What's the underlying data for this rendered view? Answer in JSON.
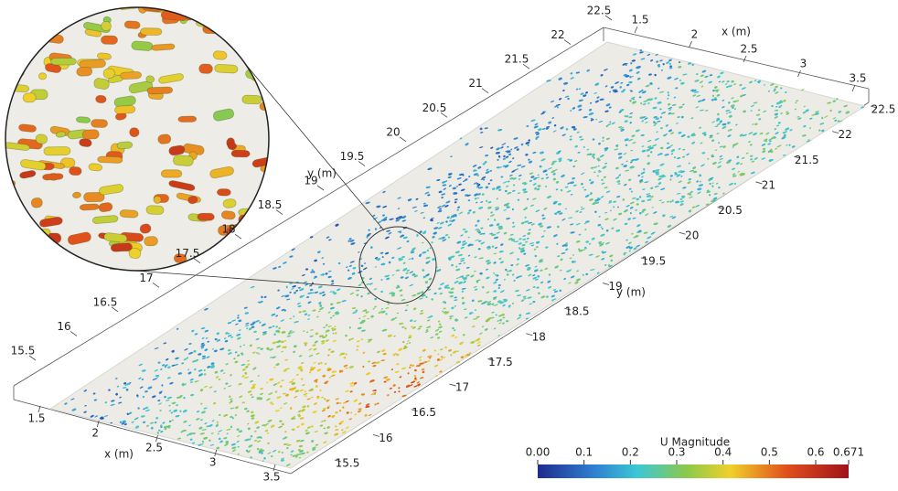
{
  "colorbar": {
    "title": "U Magnitude",
    "ticks": [
      {
        "value": 0,
        "label": "0.00"
      },
      0.1,
      0.2,
      0.3,
      0.4,
      0.5,
      0.6,
      0.671
    ]
  },
  "axes": {
    "front_x": {
      "label": "x (m)",
      "ticks": [
        1.5,
        2,
        2.5,
        3,
        3.5
      ]
    },
    "front_y": {
      "label": "y (m)",
      "ticks": [
        15.5,
        16,
        16.5,
        17,
        17.5,
        18,
        18.5,
        19,
        19.5,
        20,
        20.5,
        21,
        21.5,
        22,
        22.5
      ]
    },
    "back_y": {
      "label": "y (m)",
      "ticks": [
        15.5,
        16,
        16.5,
        17,
        17.5,
        18,
        18.5,
        19,
        19.5,
        20,
        20.5,
        21,
        21.5,
        22,
        22.5
      ]
    },
    "top_x": {
      "label": "x (m)",
      "ticks": [
        1.5,
        2,
        2.5,
        3,
        3.5
      ]
    }
  }
}
